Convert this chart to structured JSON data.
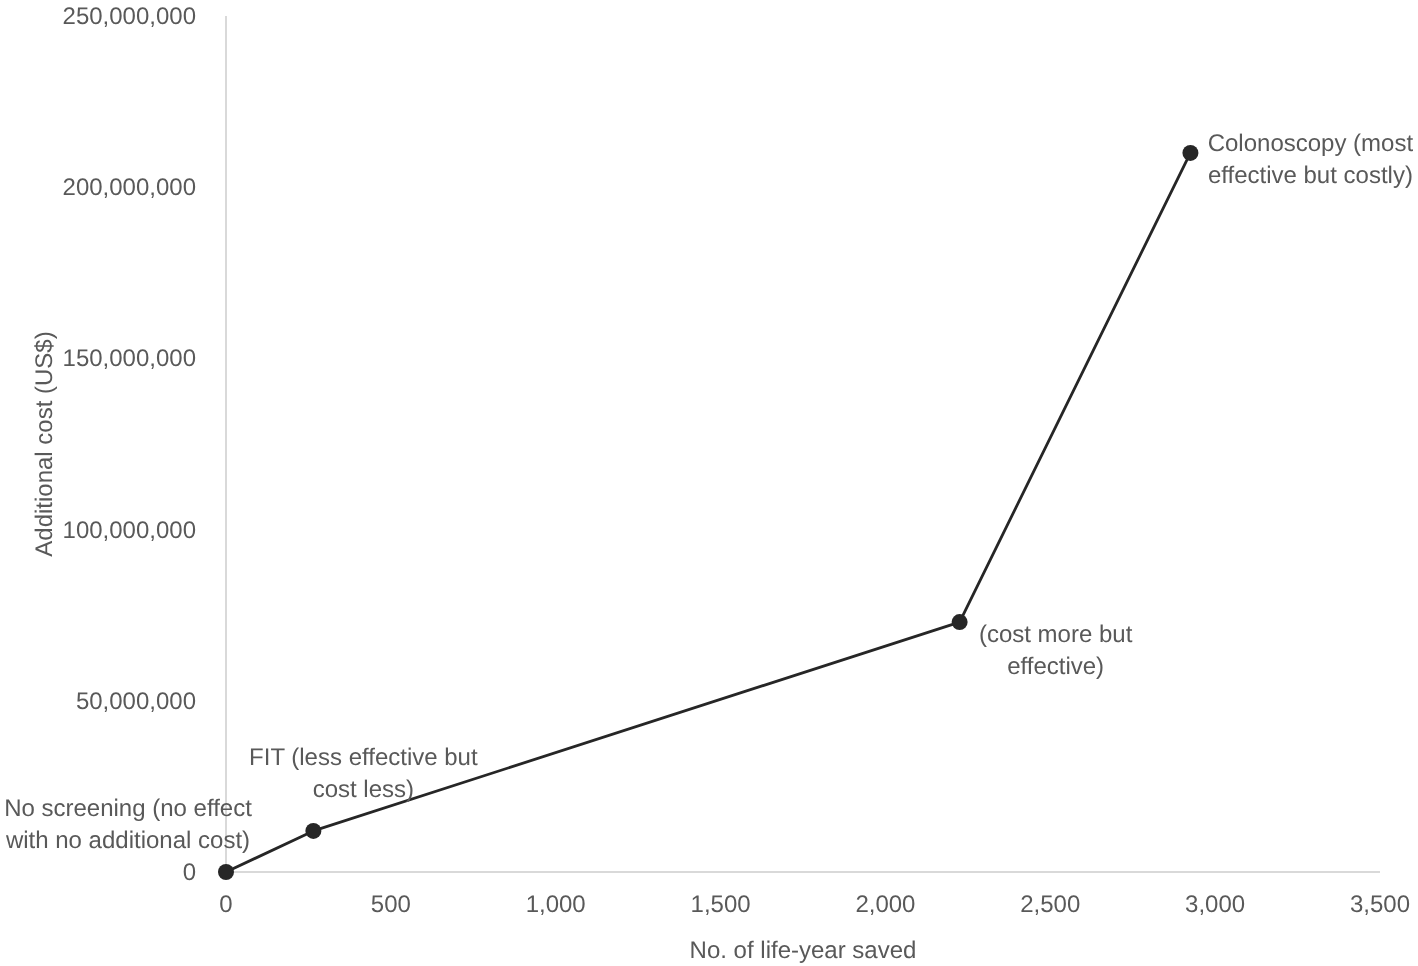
{
  "chart_data": {
    "type": "line",
    "xlabel": "No. of life-year saved",
    "ylabel": "Additional cost (US$)",
    "x": [
      0,
      265,
      2225,
      2925
    ],
    "values": [
      0,
      12000000,
      73000000,
      210000000
    ],
    "color": "#262626",
    "marker": "circle",
    "line_style": "solid",
    "xlim": [
      0,
      3500
    ],
    "xticks": [
      0,
      500,
      {
        "value": 1000,
        "label": "1,000"
      },
      {
        "value": 1500,
        "label": "1,500"
      },
      {
        "value": 2000,
        "label": "2,000"
      },
      {
        "value": 2500,
        "label": "2,500"
      },
      {
        "value": 3000,
        "label": "3,000"
      },
      {
        "value": 3500,
        "label": "3,500"
      }
    ],
    "ylim": [
      0,
      250000000
    ],
    "yticks": [
      0,
      {
        "value": 50000000,
        "label": "50,000,000"
      },
      {
        "value": 100000000,
        "label": "100,000,000"
      },
      {
        "value": 150000000,
        "label": "150,000,000"
      },
      {
        "value": 200000000,
        "label": "200,000,000"
      },
      {
        "value": 250000000,
        "label": "250,000,000"
      }
    ],
    "annotations": [
      {
        "text": "No screening (no effect with no additional cost)",
        "x": 0,
        "y": 0
      },
      {
        "text": "FIT (less effective but cost less)",
        "x": 265,
        "y": 12000000
      },
      {
        "text": "(cost more but effective)",
        "x": 2225,
        "y": 73000000
      },
      {
        "text": "Colonoscopy (most effective but costly)",
        "x": 2925,
        "y": 210000000
      }
    ]
  }
}
